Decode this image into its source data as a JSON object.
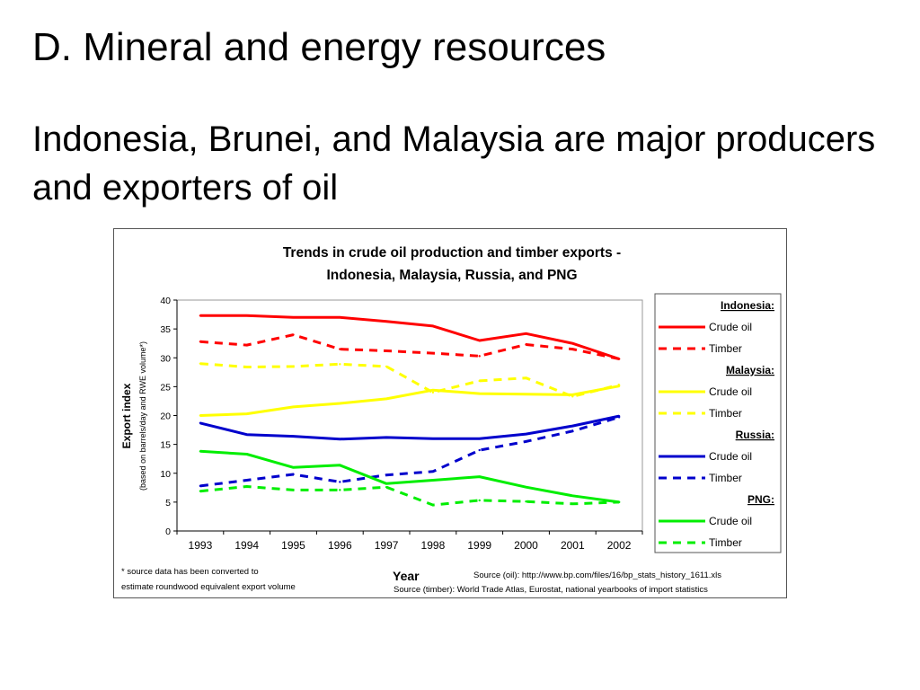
{
  "slide": {
    "title": "D. Mineral and energy resources",
    "subtitle": "Indonesia, Brunei, and Malaysia are major producers and exporters of oil"
  },
  "chart_data": {
    "type": "line",
    "title_line1": "Trends in crude oil production and timber exports -",
    "title_line2": "Indonesia, Malaysia, Russia, and PNG",
    "xlabel": "Year",
    "ylabel": "Export index",
    "ylabel_note": "(based on barrels/day and RWE volume*)",
    "ylim": [
      0,
      40
    ],
    "yticks": [
      0,
      5,
      10,
      15,
      20,
      25,
      30,
      35,
      40
    ],
    "x": [
      "1993",
      "1994",
      "1995",
      "1996",
      "1997",
      "1998",
      "1999",
      "2000",
      "2001",
      "2002"
    ],
    "grid": false,
    "legend_position": "right",
    "series": [
      {
        "group": "Indonesia:",
        "name": "Crude oil",
        "color": "#ff0000",
        "dashed": false,
        "values": [
          37.3,
          37.3,
          37.0,
          37.0,
          36.3,
          35.5,
          33.0,
          34.2,
          32.5,
          29.8
        ]
      },
      {
        "group": "Indonesia:",
        "name": "Timber",
        "color": "#ff0000",
        "dashed": true,
        "values": [
          32.8,
          32.2,
          34.0,
          31.5,
          31.2,
          30.8,
          30.3,
          32.3,
          31.5,
          29.8
        ]
      },
      {
        "group": "Malaysia:",
        "name": "Crude oil",
        "color": "#ffff00",
        "dashed": false,
        "values": [
          20.0,
          20.3,
          21.5,
          22.1,
          22.9,
          24.4,
          23.8,
          23.7,
          23.6,
          25.1
        ]
      },
      {
        "group": "Malaysia:",
        "name": "Timber",
        "color": "#ffff00",
        "dashed": true,
        "values": [
          29.0,
          28.4,
          28.5,
          28.9,
          28.5,
          24.0,
          26.0,
          26.5,
          23.3,
          25.3
        ]
      },
      {
        "group": "Russia:",
        "name": "Crude oil",
        "color": "#0000cc",
        "dashed": false,
        "values": [
          18.7,
          16.7,
          16.4,
          15.9,
          16.2,
          16.0,
          16.0,
          16.8,
          18.2,
          19.9
        ]
      },
      {
        "group": "Russia:",
        "name": "Timber",
        "color": "#0000cc",
        "dashed": true,
        "values": [
          7.8,
          8.8,
          9.8,
          8.5,
          9.7,
          10.3,
          14.0,
          15.5,
          17.3,
          19.7
        ]
      },
      {
        "group": "PNG:",
        "name": "Crude oil",
        "color": "#00ee00",
        "dashed": false,
        "values": [
          13.8,
          13.3,
          11.0,
          11.4,
          8.2,
          8.8,
          9.4,
          7.6,
          6.1,
          5.0
        ]
      },
      {
        "group": "PNG:",
        "name": "Timber",
        "color": "#00ee00",
        "dashed": true,
        "values": [
          6.9,
          7.7,
          7.1,
          7.1,
          7.6,
          4.5,
          5.3,
          5.1,
          4.7,
          5.0
        ]
      }
    ],
    "legend_groups": [
      "Indonesia:",
      "Malaysia:",
      "Russia:",
      "PNG:"
    ],
    "footnote_line1": "* source data has been converted to",
    "footnote_line2": "estimate roundwood equivalent export volume",
    "source_oil": "Source (oil):  http://www.bp.com/files/16/bp_stats_history_1611.xls",
    "source_timber": "Source (timber):  World Trade Atlas, Eurostat, national yearbooks of import statistics"
  }
}
